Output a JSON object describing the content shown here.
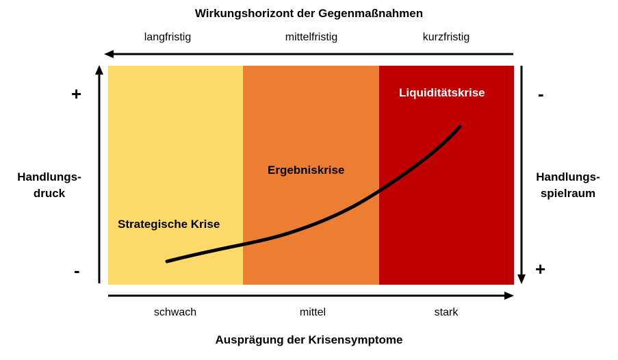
{
  "top_axis": {
    "title": "Wirkungshorizont der Gegenmaßnahmen",
    "labels": [
      "langfristig",
      "mittelfristig",
      "kurzfristig"
    ]
  },
  "bottom_axis": {
    "title": "Ausprägung der Krisensymptome",
    "labels": [
      "schwach",
      "mittel",
      "stark"
    ]
  },
  "left_axis": {
    "label_line1": "Handlungs-",
    "label_line2": "druck",
    "top_sign": "+",
    "bottom_sign": "-"
  },
  "right_axis": {
    "label_line1": "Handlungs-",
    "label_line2": "spielraum",
    "top_sign": "-",
    "bottom_sign": "+"
  },
  "zones": [
    {
      "label": "Strategische Krise",
      "color": "#FDD96A"
    },
    {
      "label": "Ergebniskrise",
      "color": "#ED7D31"
    },
    {
      "label": "Liquiditätskrise",
      "color": "#C00000"
    }
  ]
}
